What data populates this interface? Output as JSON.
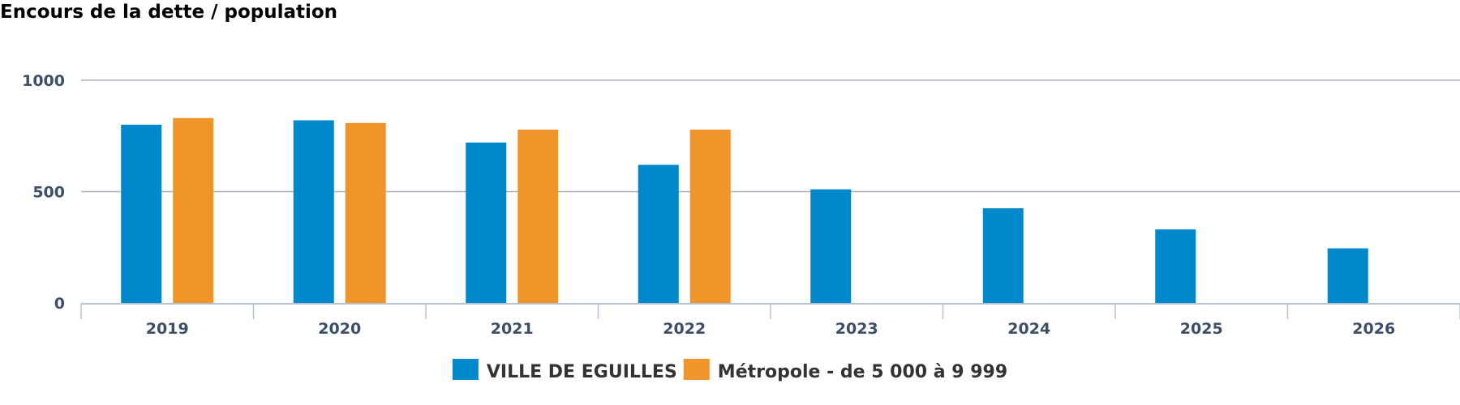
{
  "chart_data": {
    "type": "bar",
    "title": "Encours de la dette / population",
    "categories": [
      "2019",
      "2020",
      "2021",
      "2022",
      "2023",
      "2024",
      "2025",
      "2026"
    ],
    "series": [
      {
        "name": "VILLE DE EGUILLES",
        "color": "#0088cc",
        "values": [
          800,
          820,
          720,
          620,
          510,
          425,
          330,
          245
        ]
      },
      {
        "name": "Métropole - de 5 000 à 9 999",
        "color": "#f0952a",
        "values": [
          830,
          808,
          778,
          778,
          null,
          null,
          null,
          null
        ]
      }
    ],
    "yticks": [
      "0",
      "500",
      "1000"
    ],
    "ylim": [
      0,
      1000
    ],
    "grid": true,
    "legend_position": "bottom-center"
  }
}
